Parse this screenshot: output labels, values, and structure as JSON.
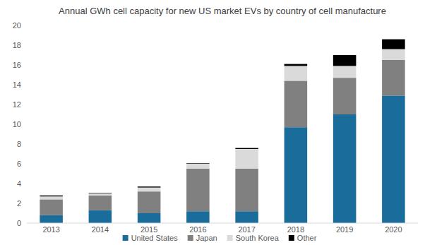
{
  "chart_data": {
    "type": "bar",
    "stacked": true,
    "legend": "bottom",
    "grid": false,
    "title": "Annual GWh cell capacity for new US market EVs by country of cell manufacture",
    "categories": [
      "2013",
      "2014",
      "2015",
      "2016",
      "2017",
      "2018",
      "2019",
      "2020"
    ],
    "series": [
      {
        "name": "United States",
        "color": "#1a6d9b",
        "values": [
          0.8,
          1.3,
          1.0,
          1.2,
          1.2,
          9.7,
          11.0,
          12.9
        ]
      },
      {
        "name": "Japan",
        "color": "#808080",
        "values": [
          1.6,
          1.5,
          2.2,
          4.3,
          4.3,
          4.7,
          3.7,
          3.6
        ]
      },
      {
        "name": "South Korea",
        "color": "#dadada",
        "values": [
          0.3,
          0.2,
          0.4,
          0.5,
          2.0,
          1.5,
          1.2,
          1.1
        ]
      },
      {
        "name": "Other",
        "color": "#000000",
        "values": [
          0.1,
          0.05,
          0.1,
          0.05,
          0.1,
          0.2,
          1.1,
          1.0
        ]
      }
    ],
    "ylim": [
      0,
      20
    ],
    "yticks": [
      0,
      2,
      4,
      6,
      8,
      10,
      12,
      14,
      16,
      18,
      20
    ]
  }
}
